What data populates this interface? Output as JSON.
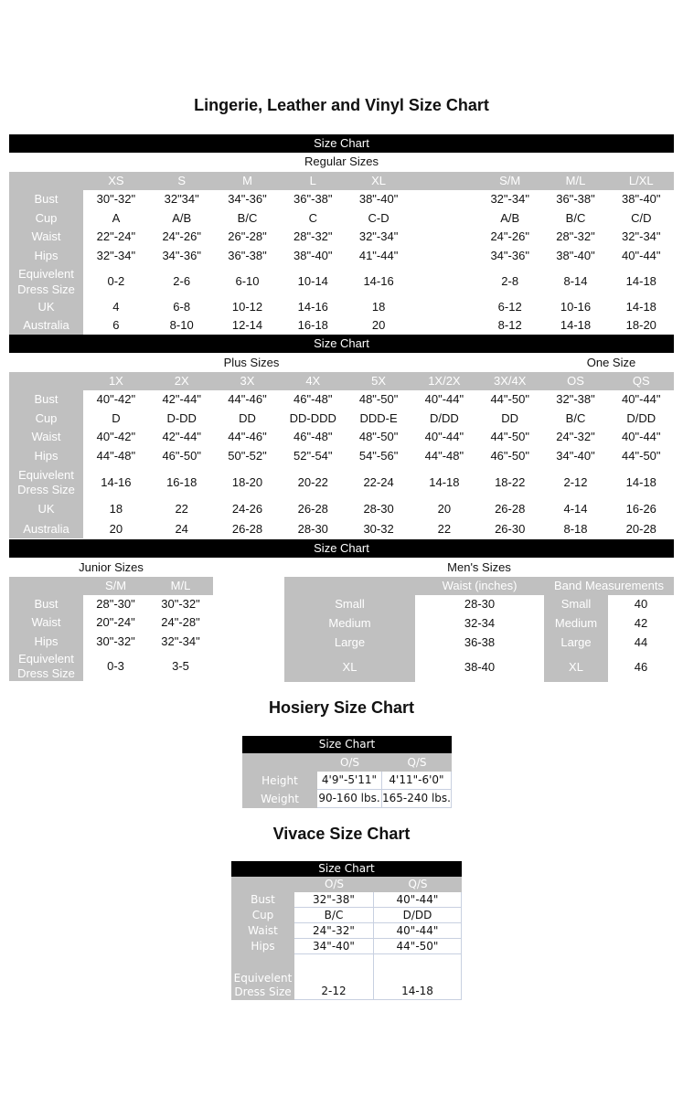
{
  "main_title": "Lingerie, Leather and Vinyl Size Chart",
  "bar_label": "Size Chart",
  "regular": {
    "title": "Regular Sizes",
    "columns": [
      "XS",
      "S",
      "M",
      "L",
      "XL",
      "",
      "S/M",
      "M/L",
      "L/XL"
    ],
    "rows": [
      {
        "label": "Bust",
        "values": [
          "30\"-32\"",
          "32\"34\"",
          "34\"-36\"",
          "36\"-38\"",
          "38\"-40\"",
          "",
          "32\"-34\"",
          "36\"-38\"",
          "38\"-40\""
        ]
      },
      {
        "label": "Cup",
        "values": [
          "A",
          "A/B",
          "B/C",
          "C",
          "C-D",
          "",
          "A/B",
          "B/C",
          "C/D"
        ]
      },
      {
        "label": "Waist",
        "values": [
          "22\"-24\"",
          "24\"-26\"",
          "26\"-28\"",
          "28\"-32\"",
          "32\"-34\"",
          "",
          "24\"-26\"",
          "28\"-32\"",
          "32\"-34\""
        ]
      },
      {
        "label": "Hips",
        "values": [
          "32\"-34\"",
          "34\"-36\"",
          "36\"-38\"",
          "38\"-40\"",
          "41\"-44\"",
          "",
          "34\"-36\"",
          "38\"-40\"",
          "40\"-44\""
        ]
      },
      {
        "label": "Equivelent Dress Size",
        "values": [
          "0-2",
          "2-6",
          "6-10",
          "10-14",
          "14-16",
          "",
          "2-8",
          "8-14",
          "14-18"
        ]
      },
      {
        "label": "UK",
        "values": [
          "4",
          "6-8",
          "10-12",
          "14-16",
          "18",
          "",
          "6-12",
          "10-16",
          "14-18"
        ]
      },
      {
        "label": "Australia",
        "values": [
          "6",
          "8-10",
          "12-14",
          "16-18",
          "20",
          "",
          "8-12",
          "14-18",
          "18-20"
        ]
      }
    ]
  },
  "plus": {
    "title": "Plus Sizes",
    "one_size_title": "One Size",
    "columns": [
      "1X",
      "2X",
      "3X",
      "4X",
      "5X",
      "1X/2X",
      "3X/4X",
      "OS",
      "QS"
    ],
    "rows": [
      {
        "label": "Bust",
        "values": [
          "40\"-42\"",
          "42\"-44\"",
          "44\"-46\"",
          "46\"-48\"",
          "48\"-50\"",
          "40\"-44\"",
          "44\"-50\"",
          "32\"-38\"",
          "40\"-44\""
        ]
      },
      {
        "label": "Cup",
        "values": [
          "D",
          "D-DD",
          "DD",
          "DD-DDD",
          "DDD-E",
          "D/DD",
          "DD",
          "B/C",
          "D/DD"
        ]
      },
      {
        "label": "Waist",
        "values": [
          "40\"-42\"",
          "42\"-44\"",
          "44\"-46\"",
          "46\"-48\"",
          "48\"-50\"",
          "40\"-44\"",
          "44\"-50\"",
          "24\"-32\"",
          "40\"-44\""
        ]
      },
      {
        "label": "Hips",
        "values": [
          "44\"-48\"",
          "46\"-50\"",
          "50\"-52\"",
          "52\"-54\"",
          "54\"-56\"",
          "44\"-48\"",
          "46\"-50\"",
          "34\"-40\"",
          "44\"-50\""
        ]
      },
      {
        "label": "Equivelent Dress Size",
        "values": [
          "14-16",
          "16-18",
          "18-20",
          "20-22",
          "22-24",
          "14-18",
          "18-22",
          "2-12",
          "14-18"
        ]
      },
      {
        "label": "UK",
        "values": [
          "18",
          "22",
          "24-26",
          "26-28",
          "28-30",
          "20",
          "26-28",
          "4-14",
          "16-26"
        ]
      },
      {
        "label": "Australia",
        "values": [
          "20",
          "24",
          "26-28",
          "28-30",
          "30-32",
          "22",
          "26-30",
          "8-18",
          "20-28"
        ]
      }
    ]
  },
  "junior": {
    "title": "Junior Sizes",
    "columns": [
      "S/M",
      "M/L"
    ],
    "rows": [
      {
        "label": "Bust",
        "values": [
          "28\"-30\"",
          "30\"-32\""
        ]
      },
      {
        "label": "Waist",
        "values": [
          "20\"-24\"",
          "24\"-28\""
        ]
      },
      {
        "label": "Hips",
        "values": [
          "30\"-32\"",
          "32\"-34\""
        ]
      },
      {
        "label": "Equivelent Dress Size",
        "values": [
          "0-3",
          "3-5"
        ]
      }
    ]
  },
  "mens": {
    "title": "Men's Sizes",
    "waist_header": "Waist (inches)",
    "band_header": "Band Measurements",
    "waist": [
      {
        "label": "Small",
        "value": "28-30"
      },
      {
        "label": "Medium",
        "value": "32-34"
      },
      {
        "label": "Large",
        "value": "36-38"
      },
      {
        "label": "XL",
        "value": "38-40"
      }
    ],
    "band": [
      {
        "label": "Small",
        "value": "40"
      },
      {
        "label": "Medium",
        "value": "42"
      },
      {
        "label": "Large",
        "value": "44"
      },
      {
        "label": "XL",
        "value": "46"
      }
    ]
  },
  "hosiery": {
    "title": "Hosiery Size Chart",
    "bar_label": "Size Chart",
    "columns": [
      "O/S",
      "Q/S"
    ],
    "rows": [
      {
        "label": "Height",
        "values": [
          "4'9\"-5'11\"",
          "4'11\"-6'0\""
        ]
      },
      {
        "label": "Weight",
        "values": [
          "90-160 lbs.",
          "165-240 lbs."
        ]
      }
    ]
  },
  "vivace": {
    "title": "Vivace Size Chart",
    "bar_label": "Size Chart",
    "columns": [
      "O/S",
      "Q/S"
    ],
    "rows": [
      {
        "label": "Bust",
        "values": [
          "32\"-38\"",
          "40\"-44\""
        ]
      },
      {
        "label": "Cup",
        "values": [
          "B/C",
          "D/DD"
        ]
      },
      {
        "label": "Waist",
        "values": [
          "24\"-32\"",
          "40\"-44\""
        ]
      },
      {
        "label": "Hips",
        "values": [
          "34\"-40\"",
          "44\"-50\""
        ]
      },
      {
        "label": "Equivelent Dress Size",
        "values": [
          "2-12",
          "14-18"
        ]
      }
    ]
  },
  "colors": {
    "bar": "#000000",
    "label_cell": "#c0c0c0",
    "text": "#111111"
  }
}
